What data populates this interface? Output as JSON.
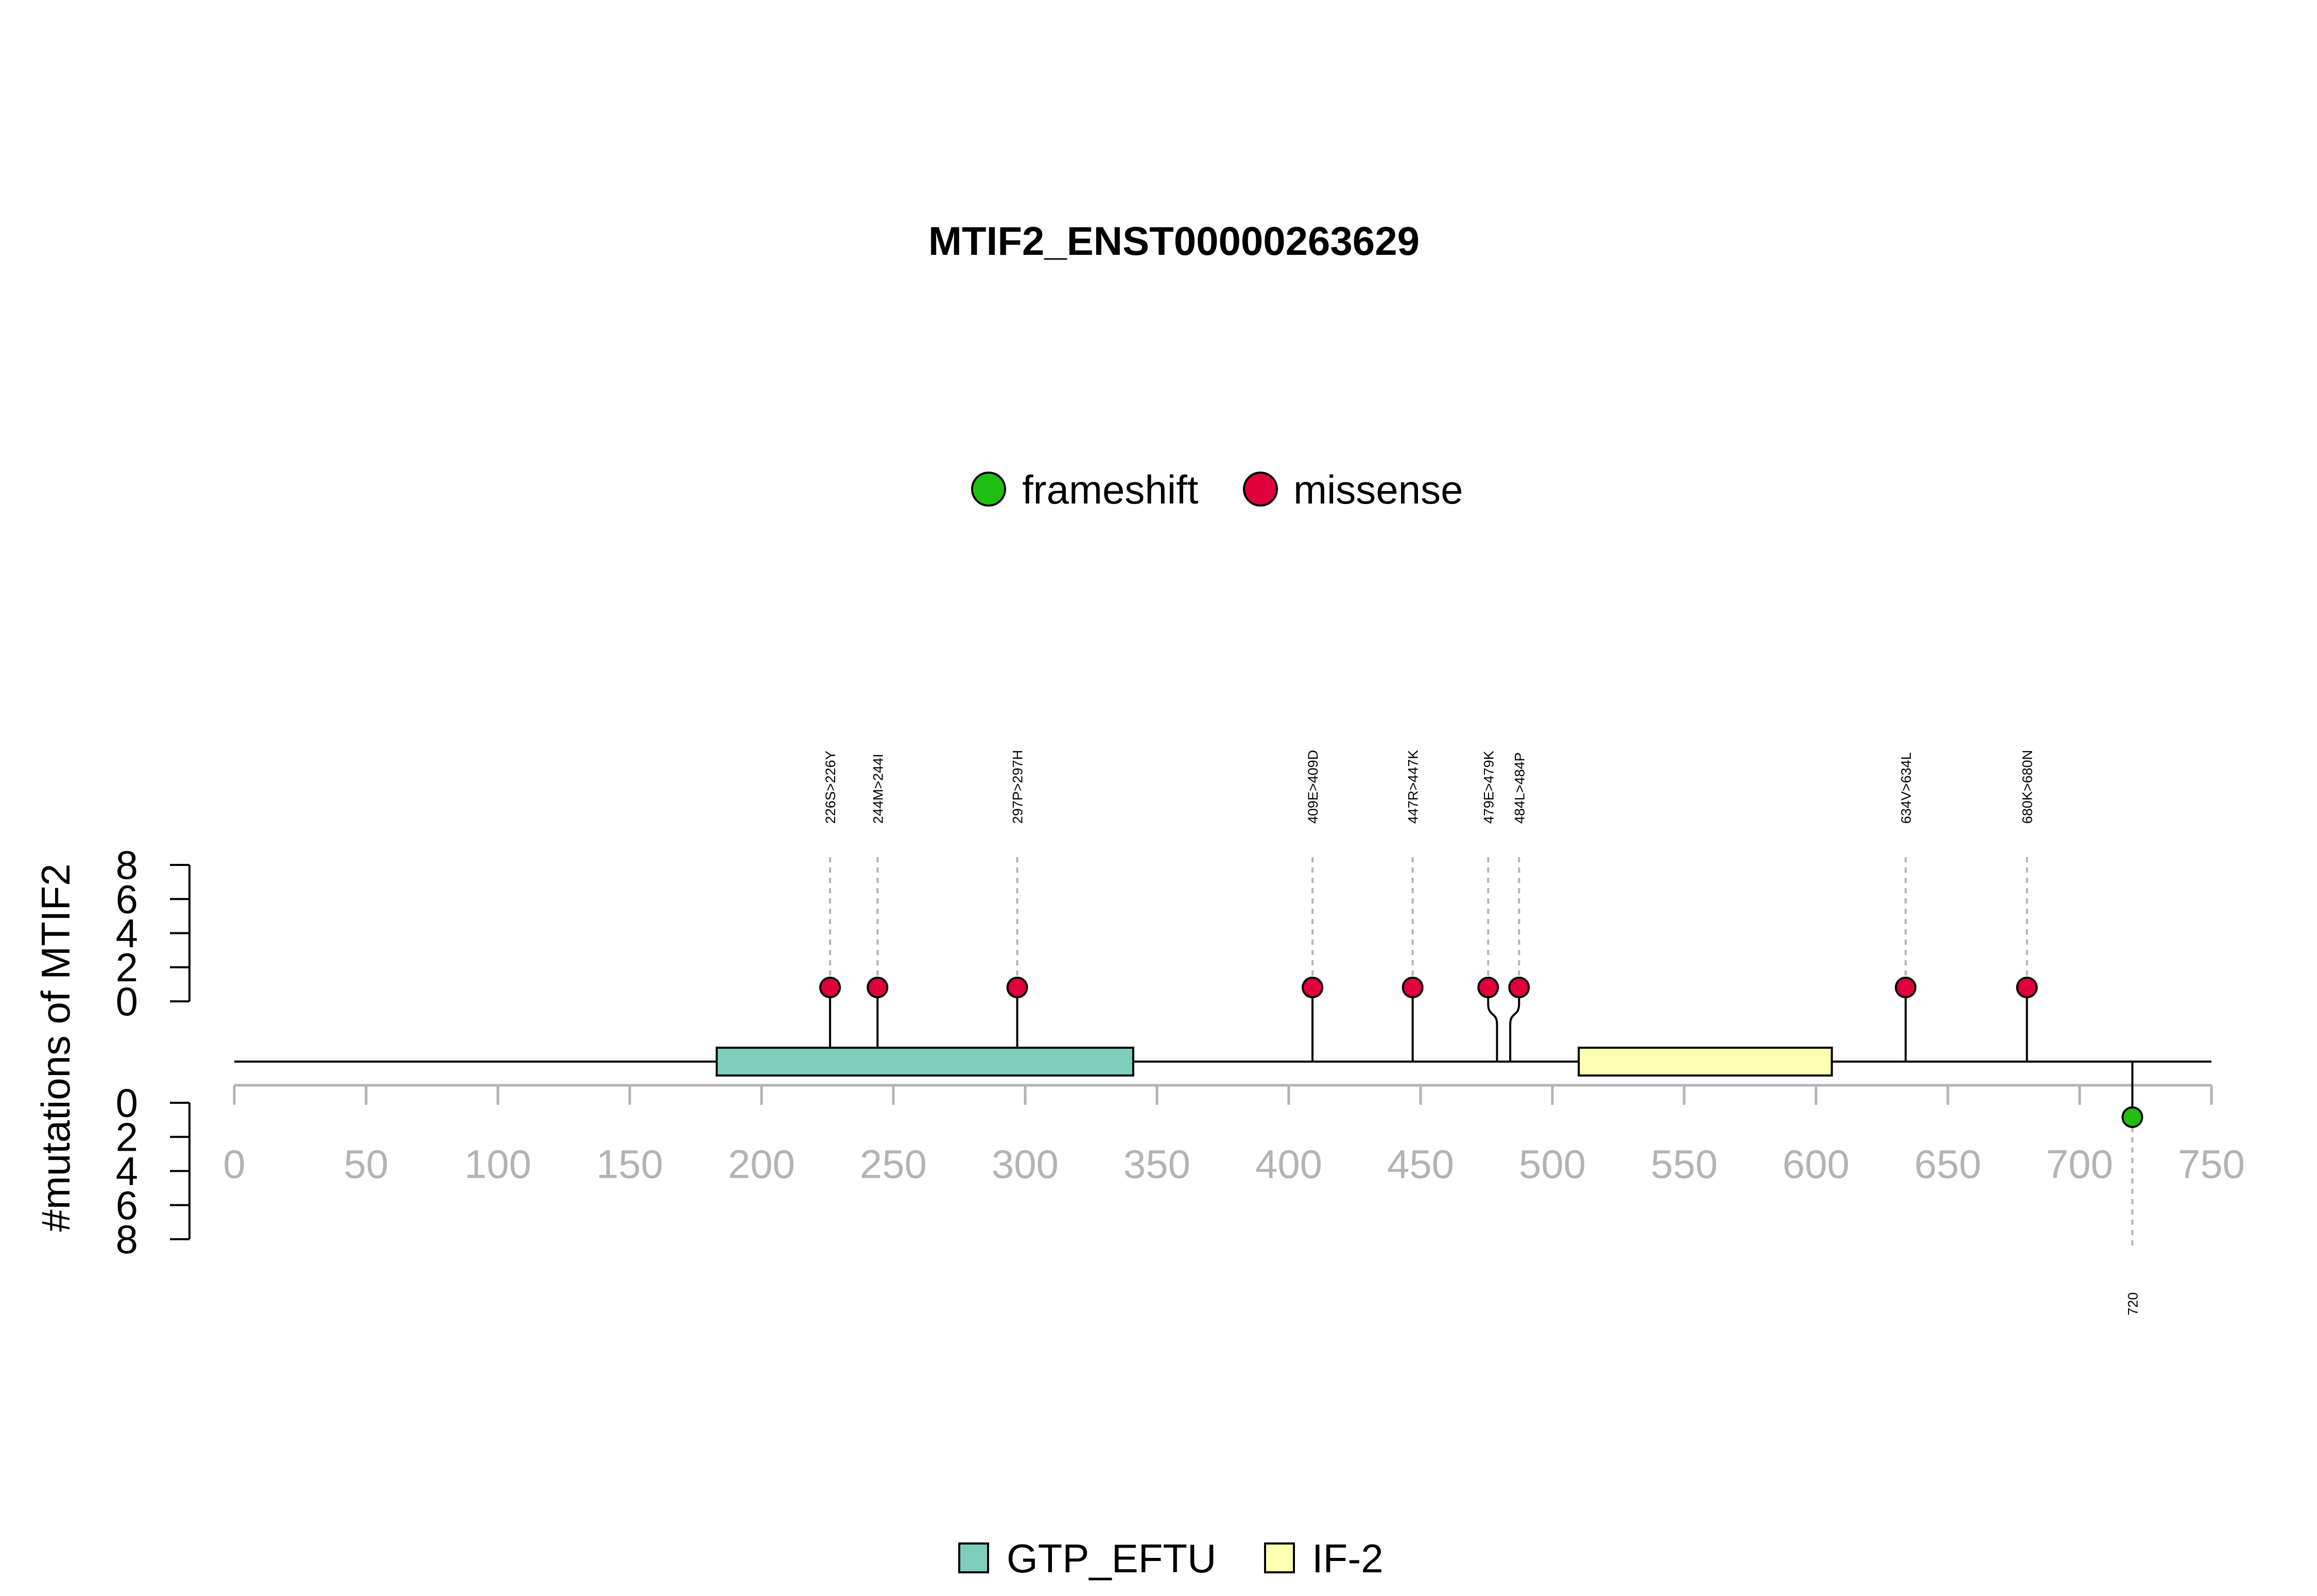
{
  "chart_data": {
    "type": "lollipop",
    "title": "MTIF2_ENST00000263629",
    "ylabel": "#mutations of MTIF2",
    "xlim": [
      0,
      750
    ],
    "x_ticks": [
      "0",
      "50",
      "100",
      "150",
      "200",
      "250",
      "300",
      "350",
      "400",
      "450",
      "500",
      "550",
      "600",
      "650",
      "700",
      "750"
    ],
    "y_ticks": [
      "0",
      "2",
      "4",
      "6",
      "8"
    ],
    "ylim": [
      0,
      8
    ],
    "mutation_legend": [
      {
        "name": "frameshift",
        "color": "#1fbf11"
      },
      {
        "name": "missense",
        "color": "#e0003c"
      }
    ],
    "domain_legend": [
      {
        "name": "GTP_EFTU",
        "color": "#7fcdbb"
      },
      {
        "name": "IF-2",
        "color": "#ffffb3"
      }
    ],
    "domains": [
      {
        "name": "GTP_EFTU",
        "start": 183,
        "end": 341,
        "color": "#7fcdbb"
      },
      {
        "name": "IF-2",
        "start": 510,
        "end": 606,
        "color": "#ffffb3"
      }
    ],
    "mutations_top": [
      {
        "pos": 226,
        "label": "226S>226Y",
        "count": 1,
        "type": "missense"
      },
      {
        "pos": 244,
        "label": "244M>244I",
        "count": 1,
        "type": "missense"
      },
      {
        "pos": 297,
        "label": "297P>297H",
        "count": 1,
        "type": "missense"
      },
      {
        "pos": 409,
        "label": "409E>409D",
        "count": 1,
        "type": "missense"
      },
      {
        "pos": 447,
        "label": "447R>447K",
        "count": 1,
        "type": "missense"
      },
      {
        "pos": 479,
        "label": "479E>479K",
        "count": 1,
        "type": "missense"
      },
      {
        "pos": 484,
        "label": "484L>484P",
        "count": 1,
        "type": "missense"
      },
      {
        "pos": 634,
        "label": "634V>634L",
        "count": 1,
        "type": "missense"
      },
      {
        "pos": 680,
        "label": "680K>680N",
        "count": 1,
        "type": "missense"
      }
    ],
    "mutations_bottom": [
      {
        "pos": 720,
        "label": "720",
        "count": 1,
        "type": "frameshift"
      }
    ]
  }
}
